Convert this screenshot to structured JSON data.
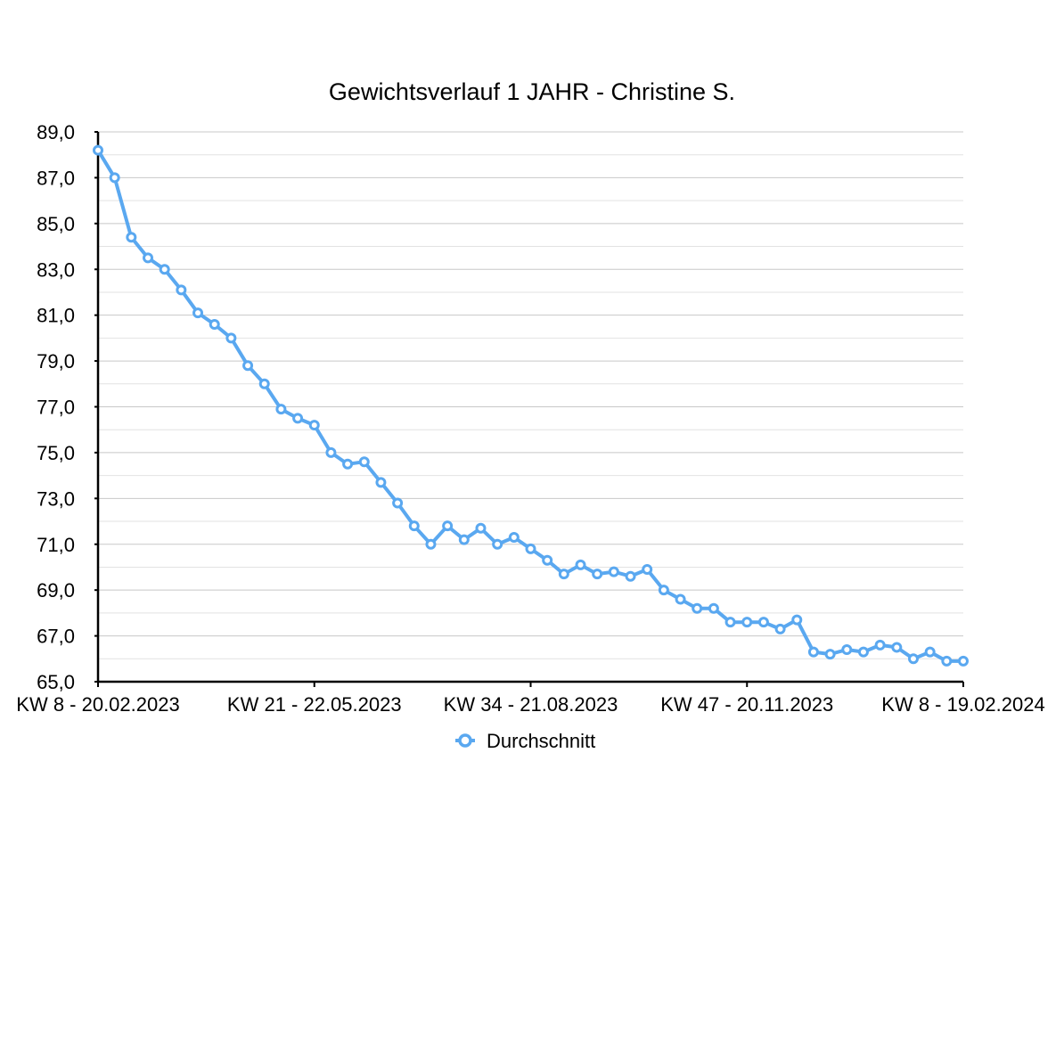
{
  "chart_data": {
    "type": "line",
    "title": "Gewichtsverlauf 1 JAHR - Christine S.",
    "xlabel": "",
    "ylabel": "",
    "ylim": [
      65,
      89
    ],
    "y_ticks": [
      "65,0",
      "67,0",
      "69,0",
      "71,0",
      "73,0",
      "75,0",
      "77,0",
      "79,0",
      "81,0",
      "83,0",
      "85,0",
      "87,0",
      "89,0"
    ],
    "x_tick_labels": [
      {
        "index": 0,
        "label": "KW 8 - 20.02.2023"
      },
      {
        "index": 13,
        "label": "KW 21 - 22.05.2023"
      },
      {
        "index": 26,
        "label": "KW 34 - 21.08.2023"
      },
      {
        "index": 39,
        "label": "KW 47 - 20.11.2023"
      },
      {
        "index": 52,
        "label": "KW 8 - 19.02.2024"
      }
    ],
    "grid": true,
    "legend_position": "bottom-center",
    "color": "#5aa8f0",
    "series": [
      {
        "name": "Durchschnitt",
        "values": [
          88.2,
          87.0,
          84.4,
          83.5,
          83.0,
          82.1,
          81.1,
          80.6,
          80.0,
          78.8,
          78.0,
          76.9,
          76.5,
          76.2,
          75.0,
          74.5,
          74.6,
          73.7,
          72.8,
          71.8,
          71.0,
          71.8,
          71.2,
          71.7,
          71.0,
          71.3,
          70.8,
          70.3,
          69.7,
          70.1,
          69.7,
          69.8,
          69.6,
          69.9,
          69.0,
          68.6,
          68.2,
          68.2,
          67.6,
          67.6,
          67.6,
          67.3,
          67.7,
          66.3,
          66.2,
          66.4,
          66.3,
          66.6,
          66.5,
          66.0,
          66.3,
          65.9,
          65.9
        ]
      }
    ]
  }
}
